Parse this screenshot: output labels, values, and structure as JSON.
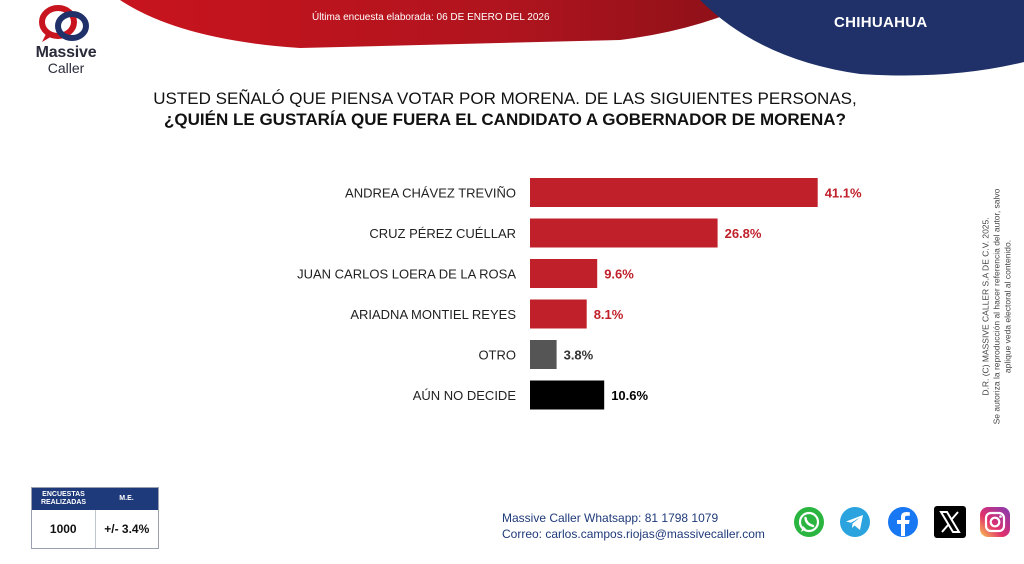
{
  "header": {
    "survey_date": "Última encuesta elaborada: 06 DE ENERO DEL 2026",
    "region": "CHIHUAHUA",
    "brand_line1": "Massive",
    "brand_line2": "Caller"
  },
  "question": {
    "line1": "USTED SEÑALÓ QUE PIENSA VOTAR POR MORENA. DE LAS SIGUIENTES PERSONAS,",
    "line2": "¿QUIÉN LE GUSTARÍA QUE FUERA EL CANDIDATO A GOBERNADOR DE MORENA?"
  },
  "chart_data": {
    "type": "bar",
    "orientation": "horizontal",
    "categories": [
      "ANDREA CHÁVEZ TREVIÑO",
      "CRUZ PÉREZ CUÉLLAR",
      "JUAN CARLOS LOERA DE LA ROSA",
      "ARIADNA MONTIEL REYES",
      "OTRO",
      "AÚN NO DECIDE"
    ],
    "values": [
      41.1,
      26.8,
      9.6,
      8.1,
      3.8,
      10.6
    ],
    "value_labels": [
      "41.1%",
      "26.8%",
      "9.6%",
      "8.1%",
      "3.8%",
      "10.6%"
    ],
    "bar_colors": [
      "#c0202a",
      "#c0202a",
      "#c0202a",
      "#c0202a",
      "#555555",
      "#000000"
    ],
    "label_colors": [
      "#c0202a",
      "#c0202a",
      "#c0202a",
      "#c0202a",
      "#333333",
      "#000000"
    ],
    "grid": false
  },
  "copyright": {
    "line1": "D.R. (C) MASSIVE CALLER S.A DE C.V. 2025.",
    "line2": "Se autoriza la reproducción al hacer referencia del autor, salvo aplique veda electoral al contenido."
  },
  "stats": {
    "col1_header": "ENCUESTAS REALIZADAS",
    "col2_header": "M.E.",
    "col1_value": "1000",
    "col2_value": "+/- 3.4%"
  },
  "contact": {
    "whatsapp": "Massive Caller Whatsapp: 81 1798 1079",
    "email": "Correo: carlos.campos.riojas@massivecaller.com"
  },
  "colors": {
    "accent_red": "#c0202a",
    "navy": "#1f3a7a"
  },
  "social_icons": [
    "whatsapp-icon",
    "telegram-icon",
    "facebook-icon",
    "x-icon",
    "instagram-icon"
  ]
}
